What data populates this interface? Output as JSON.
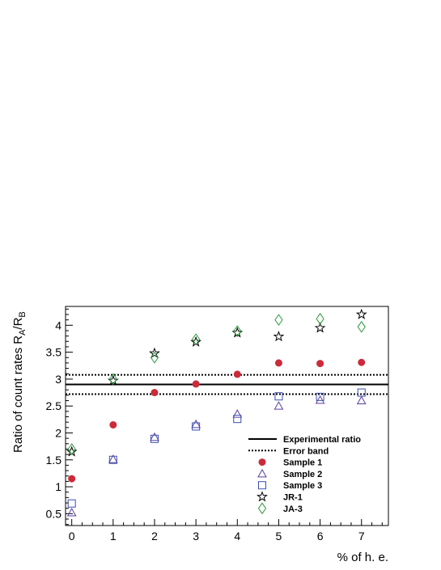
{
  "chart_data": {
    "type": "scatter",
    "xlabel": "% of h. e.",
    "ylabel_main": "Ratio of count rates R",
    "ylabel_sub_a": "A",
    "ylabel_slash": "/R",
    "ylabel_sub_b": "B",
    "xlim": [
      -0.15,
      7.65
    ],
    "ylim": [
      0.28,
      4.35
    ],
    "x_ticks": [
      0,
      1,
      2,
      3,
      4,
      5,
      6,
      7
    ],
    "y_ticks": [
      0.5,
      1,
      1.5,
      2,
      2.5,
      3,
      3.5,
      4
    ],
    "y_tick_labels": [
      "0.5",
      "1",
      "1.5",
      "2",
      "2.5",
      "3",
      "3.5",
      "4"
    ],
    "experimental_ratio": 2.9,
    "error_band": [
      2.72,
      3.08
    ],
    "series": [
      {
        "name": "Sample 1",
        "marker": "circle-filled",
        "color": "#cc2a3a",
        "x": [
          0,
          1,
          2,
          3,
          4,
          5,
          6,
          7
        ],
        "y": [
          1.15,
          2.15,
          2.75,
          2.91,
          3.09,
          3.3,
          3.29,
          3.31
        ]
      },
      {
        "name": "Sample 2",
        "marker": "triangle-open",
        "color": "#5b3d9e",
        "x": [
          0,
          1,
          2,
          3,
          4,
          5,
          6,
          7
        ],
        "y": [
          0.52,
          1.51,
          1.92,
          2.16,
          2.35,
          2.5,
          2.61,
          2.6
        ]
      },
      {
        "name": "Sample 3",
        "marker": "square-open",
        "color": "#3a4fb0",
        "x": [
          0,
          1,
          2,
          3,
          4,
          5,
          6,
          7
        ],
        "y": [
          0.69,
          1.5,
          1.89,
          2.12,
          2.26,
          2.68,
          2.67,
          2.75
        ]
      },
      {
        "name": "JR-1",
        "marker": "star-open",
        "color": "#000000",
        "x": [
          0,
          1,
          2,
          3,
          4,
          5,
          6,
          7
        ],
        "y": [
          1.65,
          2.97,
          3.48,
          3.69,
          3.86,
          3.79,
          3.95,
          4.2
        ]
      },
      {
        "name": "JA-3",
        "marker": "diamond-open",
        "color": "#2a9a3a",
        "x": [
          0,
          1,
          2,
          3,
          4,
          5,
          6,
          7
        ],
        "y": [
          1.7,
          3.0,
          3.4,
          3.74,
          3.89,
          4.1,
          4.12,
          3.97
        ]
      }
    ],
    "legend": {
      "placement": "bottom-right",
      "entries": [
        {
          "label": "Experimental ratio",
          "marker": "line-solid"
        },
        {
          "label": "Error band",
          "marker": "line-dotted"
        },
        {
          "label": "Sample 1",
          "marker": "circle-filled"
        },
        {
          "label": "Sample 2",
          "marker": "triangle-open"
        },
        {
          "label": "Sample 3",
          "marker": "square-open"
        },
        {
          "label": "JR-1",
          "marker": "star-open"
        },
        {
          "label": "JA-3",
          "marker": "diamond-open"
        }
      ]
    },
    "grid": false
  }
}
